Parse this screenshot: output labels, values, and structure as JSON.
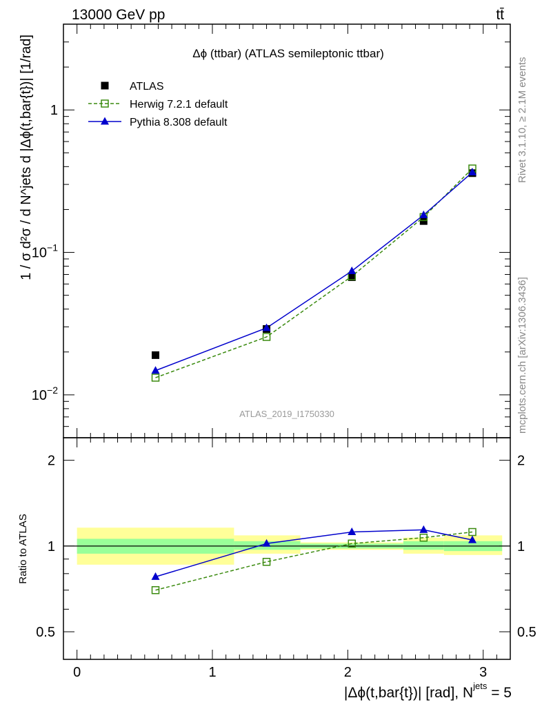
{
  "header": {
    "left": "13000 GeV pp",
    "right": "tt̄"
  },
  "side_labels": {
    "rivet": "Rivet 3.1.10, ≥ 2.1M events",
    "mcplots": "mcplots.cern.ch [arXiv:1306.3436]"
  },
  "main_plot": {
    "title": "Δϕ (ttbar) (ATLAS semileptonic ttbar)",
    "ylabel": "1 / σ d²σ / d N^jets d |Δϕ(t,bar{t})| [1/rad]",
    "watermark": "ATLAS_2019_I1750330",
    "y_ticks": [
      {
        "value": 0.01,
        "label": "10",
        "sup": "−2"
      },
      {
        "value": 0.1,
        "label": "10",
        "sup": "−1"
      },
      {
        "value": 1,
        "label": "1",
        "sup": ""
      }
    ],
    "legend": [
      {
        "name": "ATLAS",
        "color": "#000000",
        "marker": "filled-square",
        "line": "none"
      },
      {
        "name": "Herwig 7.2.1 default",
        "color": "#3a8a0e",
        "marker": "open-square",
        "line": "dashed"
      },
      {
        "name": "Pythia 8.308 default",
        "color": "#0000cc",
        "marker": "filled-triangle",
        "line": "solid"
      }
    ]
  },
  "ratio_plot": {
    "ylabel": "Ratio to ATLAS",
    "y_ticks_left": [
      "0.5",
      "1",
      "2"
    ],
    "y_ticks_right": [
      "0.5",
      "1",
      "2"
    ]
  },
  "x_axis": {
    "label_main": "|Δϕ(t,bar{t})| [rad], N",
    "label_sup": "jets",
    "label_tail": " = 5",
    "ticks": [
      "0",
      "1",
      "2",
      "3"
    ]
  },
  "chart_data": {
    "type": "scatter",
    "title": "Δϕ (ttbar) (ATLAS semileptonic ttbar)",
    "xlabel": "|Δϕ(t,bar{t})| [rad], N^jets = 5",
    "ylabel": "1 / σ d²σ / d N^jets d |Δϕ(t,bar{t})| [1/rad]",
    "xlim": [
      -0.1,
      3.2
    ],
    "ylim": [
      0.005,
      4.0
    ],
    "yscale": "log",
    "ratio_ylim": [
      0.4,
      2.4
    ],
    "ratio_yscale": "log",
    "x": [
      0.58,
      1.4,
      2.03,
      2.56,
      2.92
    ],
    "bins": [
      [
        0.0,
        1.16
      ],
      [
        1.16,
        1.65
      ],
      [
        1.65,
        2.41
      ],
      [
        2.41,
        2.71
      ],
      [
        2.71,
        3.14
      ]
    ],
    "series": [
      {
        "name": "ATLAS",
        "values": [
          0.019,
          0.029,
          0.067,
          0.166,
          0.36
        ]
      },
      {
        "name": "Herwig 7.2.1 default",
        "values": [
          0.0132,
          0.0255,
          0.068,
          0.177,
          0.388
        ]
      },
      {
        "name": "Pythia 8.308 default",
        "values": [
          0.0148,
          0.0295,
          0.074,
          0.183,
          0.365
        ]
      }
    ],
    "ratio": [
      {
        "name": "Herwig 7.2.1 default",
        "values": [
          0.7,
          0.88,
          1.02,
          1.07,
          1.12
        ]
      },
      {
        "name": "Pythia 8.308 default",
        "values": [
          0.78,
          1.02,
          1.12,
          1.14,
          1.05
        ]
      }
    ],
    "uncertainty_bands": {
      "inner_color": "#99ff99",
      "outer_color": "#ffff99",
      "inner": [
        [
          0.94,
          1.06
        ],
        [
          0.97,
          1.04
        ],
        [
          0.98,
          1.02
        ],
        [
          0.97,
          1.04
        ],
        [
          0.96,
          1.04
        ]
      ],
      "outer": [
        [
          0.86,
          1.16
        ],
        [
          0.94,
          1.09
        ],
        [
          0.97,
          1.03
        ],
        [
          0.94,
          1.07
        ],
        [
          0.93,
          1.09
        ]
      ]
    }
  }
}
